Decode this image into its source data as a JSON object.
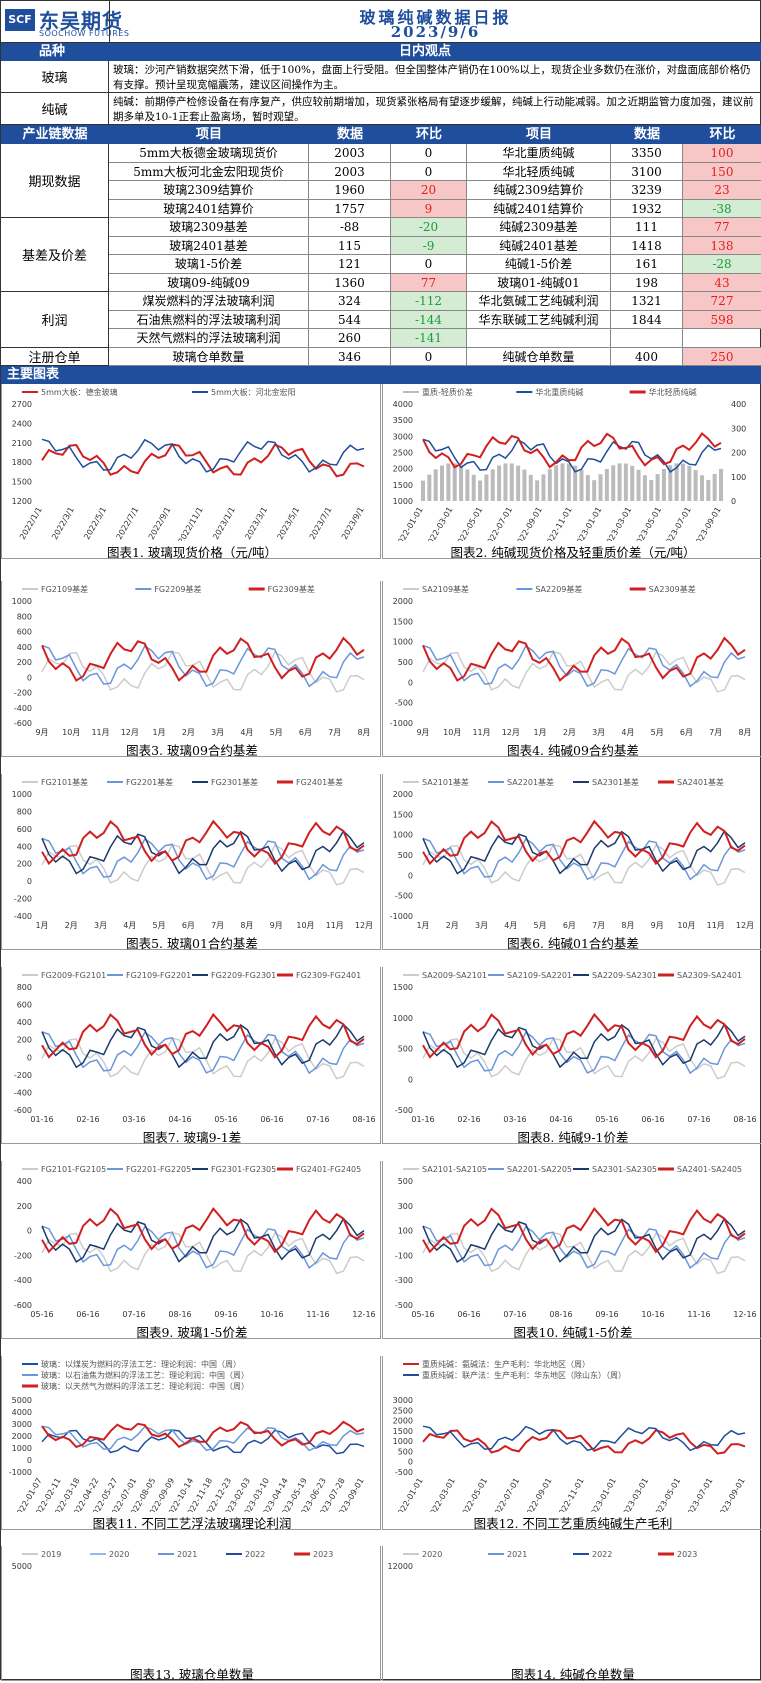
{
  "header": {
    "logo_mark": "SCF",
    "logo_cn": "东吴期货",
    "logo_en": "SOOCHOW FUTURES",
    "title": "玻璃纯碱数据日报",
    "date": "2023/9/6"
  },
  "viewpoint_bar": {
    "left": "品种",
    "right": "日内观点"
  },
  "viewpoints": [
    {
      "label": "玻璃",
      "text": "玻璃：沙河产销数据突然下滑，低于100%，盘面上行受阻。但全国整体产销仍在100%以上，现货企业多数仍在涨价，对盘面底部价格仍有支撑。预计呈现宽幅震荡，建议区间操作为主。"
    },
    {
      "label": "纯碱",
      "text": "纯碱：前期停产检修设备在有序复产，供应较前期增加，现货紧张格局有望逐步缓解，纯碱上行动能减弱。加之近期监管力度加强，建议前期多单及10-1正套止盈离场，暂时观望。"
    }
  ],
  "table": {
    "headers": [
      "产业链数据",
      "项目",
      "数据",
      "环比",
      "项目",
      "数据",
      "环比"
    ],
    "groups": [
      {
        "name": "期现数据",
        "rows": [
          [
            "5mm大板德金玻璃现货价",
            "2003",
            "0",
            "",
            "华北重质纯碱",
            "3350",
            "100",
            "up"
          ],
          [
            "5mm大板河北金宏阳现货价",
            "2003",
            "0",
            "",
            "华北轻质纯碱",
            "3100",
            "150",
            "up"
          ],
          [
            "玻璃2309结算价",
            "1960",
            "20",
            "up",
            "纯碱2309结算价",
            "3239",
            "23",
            "up"
          ],
          [
            "玻璃2401结算价",
            "1757",
            "9",
            "up",
            "纯碱2401结算价",
            "1932",
            "-38",
            "dn"
          ]
        ]
      },
      {
        "name": "基差及价差",
        "rows": [
          [
            "玻璃2309基差",
            "-88",
            "-20",
            "dn",
            "纯碱2309基差",
            "111",
            "77",
            "up"
          ],
          [
            "玻璃2401基差",
            "115",
            "-9",
            "dn",
            "纯碱2401基差",
            "1418",
            "138",
            "up"
          ],
          [
            "玻璃1-5价差",
            "121",
            "0",
            "",
            "纯碱1-5价差",
            "161",
            "-28",
            "dn"
          ],
          [
            "玻璃09-纯碱09",
            "1360",
            "77",
            "up",
            "玻璃01-纯碱01",
            "198",
            "43",
            "up"
          ]
        ]
      },
      {
        "name": "利润",
        "rows": [
          [
            "煤炭燃料的浮法玻璃利润",
            "324",
            "-112",
            "dn",
            "华北氨碱工艺纯碱利润",
            "1321",
            "727",
            "up"
          ],
          [
            "石油焦燃料的浮法玻璃利润",
            "544",
            "-144",
            "dn",
            "华东联碱工艺纯碱利润",
            "1844",
            "598",
            "up"
          ],
          [
            "天然气燃料的浮法玻璃利润",
            "260",
            "-141",
            "dn",
            "",
            "",
            "",
            ""
          ]
        ]
      },
      {
        "name": "注册仓单",
        "rows": [
          [
            "玻璃仓单数量",
            "346",
            "0",
            "",
            "纯碱仓单数量",
            "400",
            "250",
            "up"
          ]
        ]
      }
    ]
  },
  "charts_bar": "主要图表",
  "panels": [
    {
      "title": "图表1. 玻璃现货价格（元/吨）",
      "legend": [
        "5mm大板：德金玻璃",
        "5mm大板：河北金宏阳"
      ],
      "colors": [
        "#d11f1f",
        "#1f4e9c"
      ],
      "yticks": [
        "2700",
        "2400",
        "2100",
        "1800",
        "1500",
        "1200"
      ],
      "xticks": [
        "2022/1/1",
        "2022/3/1",
        "2022/5/1",
        "2022/7/1",
        "2022/9/1",
        "2022/11/1",
        "2023/1/1",
        "2023/3/1",
        "2023/5/1",
        "2023/7/1",
        "2023/9/1"
      ],
      "xrot": true
    },
    {
      "title": "图表2. 纯碱现货价格及轻重质价差（元/吨）",
      "legend": [
        "重质-轻质价差",
        "华北重质纯碱",
        "华北轻质纯碱"
      ],
      "colors": [
        "#bbbbbb",
        "#1f4e9c",
        "#d11f1f"
      ],
      "yticks": [
        "4000",
        "3500",
        "3000",
        "2500",
        "2000",
        "1500",
        "1000"
      ],
      "yticks_right": [
        "400",
        "300",
        "200",
        "100",
        "0"
      ],
      "xticks": [
        "2022-01-01",
        "2022-03-01",
        "2022-05-01",
        "2022-07-01",
        "2022-09-01",
        "2022-11-01",
        "2023-01-01",
        "2023-03-01",
        "2023-05-01",
        "2023-07-01",
        "2023-09-01"
      ],
      "xrot": true
    },
    {
      "title": "图表3. 玻璃09合约基差",
      "legend": [
        "FG2109基差",
        "FG2209基差",
        "FG2309基差"
      ],
      "colors": [
        "#cccccc",
        "#6b96d9",
        "#d11f1f"
      ],
      "yticks": [
        "1000",
        "800",
        "600",
        "400",
        "200",
        "0",
        "-200",
        "-400",
        "-600"
      ],
      "xticks": [
        "9月",
        "10月",
        "11月",
        "12月",
        "1月",
        "2月",
        "3月",
        "4月",
        "5月",
        "6月",
        "7月",
        "8月"
      ]
    },
    {
      "title": "图表4. 纯碱09合约基差",
      "legend": [
        "SA2109基差",
        "SA2209基差",
        "SA2309基差"
      ],
      "colors": [
        "#cccccc",
        "#6b96d9",
        "#d11f1f"
      ],
      "yticks": [
        "2000",
        "1500",
        "1000",
        "500",
        "0",
        "-500",
        "-1000"
      ],
      "xticks": [
        "9月",
        "10月",
        "11月",
        "12月",
        "1月",
        "2月",
        "3月",
        "4月",
        "5月",
        "6月",
        "7月",
        "8月"
      ]
    },
    {
      "title": "图表5. 玻璃01合约基差",
      "legend": [
        "FG2101基差",
        "FG2201基差",
        "FG2301基差",
        "FG2401基差"
      ],
      "colors": [
        "#cccccc",
        "#6b96d9",
        "#1a3a6e",
        "#d11f1f"
      ],
      "yticks": [
        "1000",
        "800",
        "600",
        "400",
        "200",
        "0",
        "-200",
        "-400"
      ],
      "xticks": [
        "1月",
        "2月",
        "3月",
        "4月",
        "5月",
        "6月",
        "7月",
        "8月",
        "9月",
        "10月",
        "11月",
        "12月"
      ]
    },
    {
      "title": "图表6. 纯碱01合约基差",
      "legend": [
        "SA2101基差",
        "SA2201基差",
        "SA2301基差",
        "SA2401基差"
      ],
      "colors": [
        "#cccccc",
        "#6b96d9",
        "#1a3a6e",
        "#d11f1f"
      ],
      "yticks": [
        "2000",
        "1500",
        "1000",
        "500",
        "0",
        "-500",
        "-1000"
      ],
      "xticks": [
        "1月",
        "2月",
        "3月",
        "4月",
        "5月",
        "6月",
        "7月",
        "8月",
        "9月",
        "10月",
        "11月",
        "12月"
      ]
    },
    {
      "title": "图表7. 玻璃9-1差",
      "legend": [
        "FG2009-FG2101",
        "FG2109-FG2201",
        "FG2209-FG2301",
        "FG2309-FG2401"
      ],
      "colors": [
        "#cccccc",
        "#6b96d9",
        "#1a3a6e",
        "#d11f1f"
      ],
      "yticks": [
        "800",
        "600",
        "400",
        "200",
        "0",
        "-200",
        "-400",
        "-600"
      ],
      "xticks": [
        "01-16",
        "02-16",
        "03-16",
        "04-16",
        "05-16",
        "06-16",
        "07-16",
        "08-16"
      ]
    },
    {
      "title": "图表8. 纯碱9-1价差",
      "legend": [
        "SA2009-SA2101",
        "SA2109-SA2201",
        "SA2209-SA2301",
        "SA2309-SA2401"
      ],
      "colors": [
        "#cccccc",
        "#6b96d9",
        "#1a3a6e",
        "#d11f1f"
      ],
      "yticks": [
        "1500",
        "1000",
        "500",
        "0",
        "-500"
      ],
      "xticks": [
        "01-16",
        "02-16",
        "03-16",
        "04-16",
        "05-16",
        "06-16",
        "07-16",
        "08-16"
      ]
    },
    {
      "title": "图表9. 玻璃1-5价差",
      "legend": [
        "FG2101-FG2105",
        "FG2201-FG2205",
        "FG2301-FG2305",
        "FG2401-FG2405"
      ],
      "colors": [
        "#cccccc",
        "#6b96d9",
        "#1a3a6e",
        "#d11f1f"
      ],
      "yticks": [
        "400",
        "200",
        "0",
        "-200",
        "-400",
        "-600"
      ],
      "xticks": [
        "05-16",
        "06-16",
        "07-16",
        "08-16",
        "09-16",
        "10-16",
        "11-16",
        "12-16"
      ]
    },
    {
      "title": "图表10. 纯碱1-5价差",
      "legend": [
        "SA2101-SA2105",
        "SA2201-SA2205",
        "SA2301-SA2305",
        "SA2401-SA2405"
      ],
      "colors": [
        "#cccccc",
        "#6b96d9",
        "#1a3a6e",
        "#d11f1f"
      ],
      "yticks": [
        "500",
        "300",
        "100",
        "-100",
        "-300",
        "-500"
      ],
      "xticks": [
        "05-16",
        "06-16",
        "07-16",
        "08-16",
        "09-16",
        "10-16",
        "11-16",
        "12-16"
      ]
    },
    {
      "title": "图表11. 不同工艺浮法玻璃理论利润",
      "legend": [
        "玻璃：以煤炭为燃料的浮法工艺：理论利润：中国（周）",
        "玻璃：以石油焦为燃料的浮法工艺：理论利润：中国（周）",
        "玻璃：以天然气为燃料的浮法工艺：理论利润：中国（周）"
      ],
      "colors": [
        "#1f4e9c",
        "#6b96d9",
        "#d11f1f"
      ],
      "yticks": [
        "5000",
        "4000",
        "3000",
        "2000",
        "1000",
        "0",
        "-1000"
      ],
      "xticks": [
        "2022-01-07",
        "2022-02-11",
        "2022-03-18",
        "2022-04-22",
        "2022-05-27",
        "2022-07-01",
        "2022-08-05",
        "2022-09-09",
        "2022-10-14",
        "2022-11-18",
        "2022-12-23",
        "2023-02-03",
        "2023-03-10",
        "2023-04-14",
        "2023-05-19",
        "2023-06-23",
        "2023-07-28",
        "2023-09-01"
      ],
      "xrot": true
    },
    {
      "title": "图表12. 不同工艺重质纯碱生产毛利",
      "legend": [
        "重质纯碱：氨碱法：生产毛利：华北地区（周）",
        "重质纯碱：联产法：生产毛利：华东地区（除山东）（周）"
      ],
      "colors": [
        "#d11f1f",
        "#1f4e9c"
      ],
      "yticks": [
        "3000",
        "2500",
        "2000",
        "1500",
        "1000",
        "500",
        "0",
        "-500"
      ],
      "xticks": [
        "2022-01-01",
        "2022-03-01",
        "2022-05-01",
        "2022-07-01",
        "2022-09-01",
        "2022-11-01",
        "2023-01-01",
        "2023-03-01",
        "2023-05-01",
        "2023-07-01",
        "2023-09-01"
      ],
      "xrot": true
    },
    {
      "title": "图表13. 玻璃仓单数量",
      "legend": [
        "2019",
        "2020",
        "2021",
        "2022",
        "2023"
      ],
      "colors": [
        "#cccccc",
        "#9ab7e6",
        "#6b96d9",
        "#1f4e9c",
        "#d11f1f"
      ],
      "yticks": [
        "5000"
      ],
      "xticks": []
    },
    {
      "title": "图表14. 纯碱仓单数量",
      "legend": [
        "2020",
        "2021",
        "2022",
        "2023"
      ],
      "colors": [
        "#cccccc",
        "#6b96d9",
        "#1f4e9c",
        "#d11f1f"
      ],
      "yticks": [
        "12000"
      ],
      "xticks": []
    }
  ],
  "colors": {
    "brand_blue": "#1f4e9c",
    "up_red": "#e02020",
    "down_green": "#1e9a3a"
  }
}
